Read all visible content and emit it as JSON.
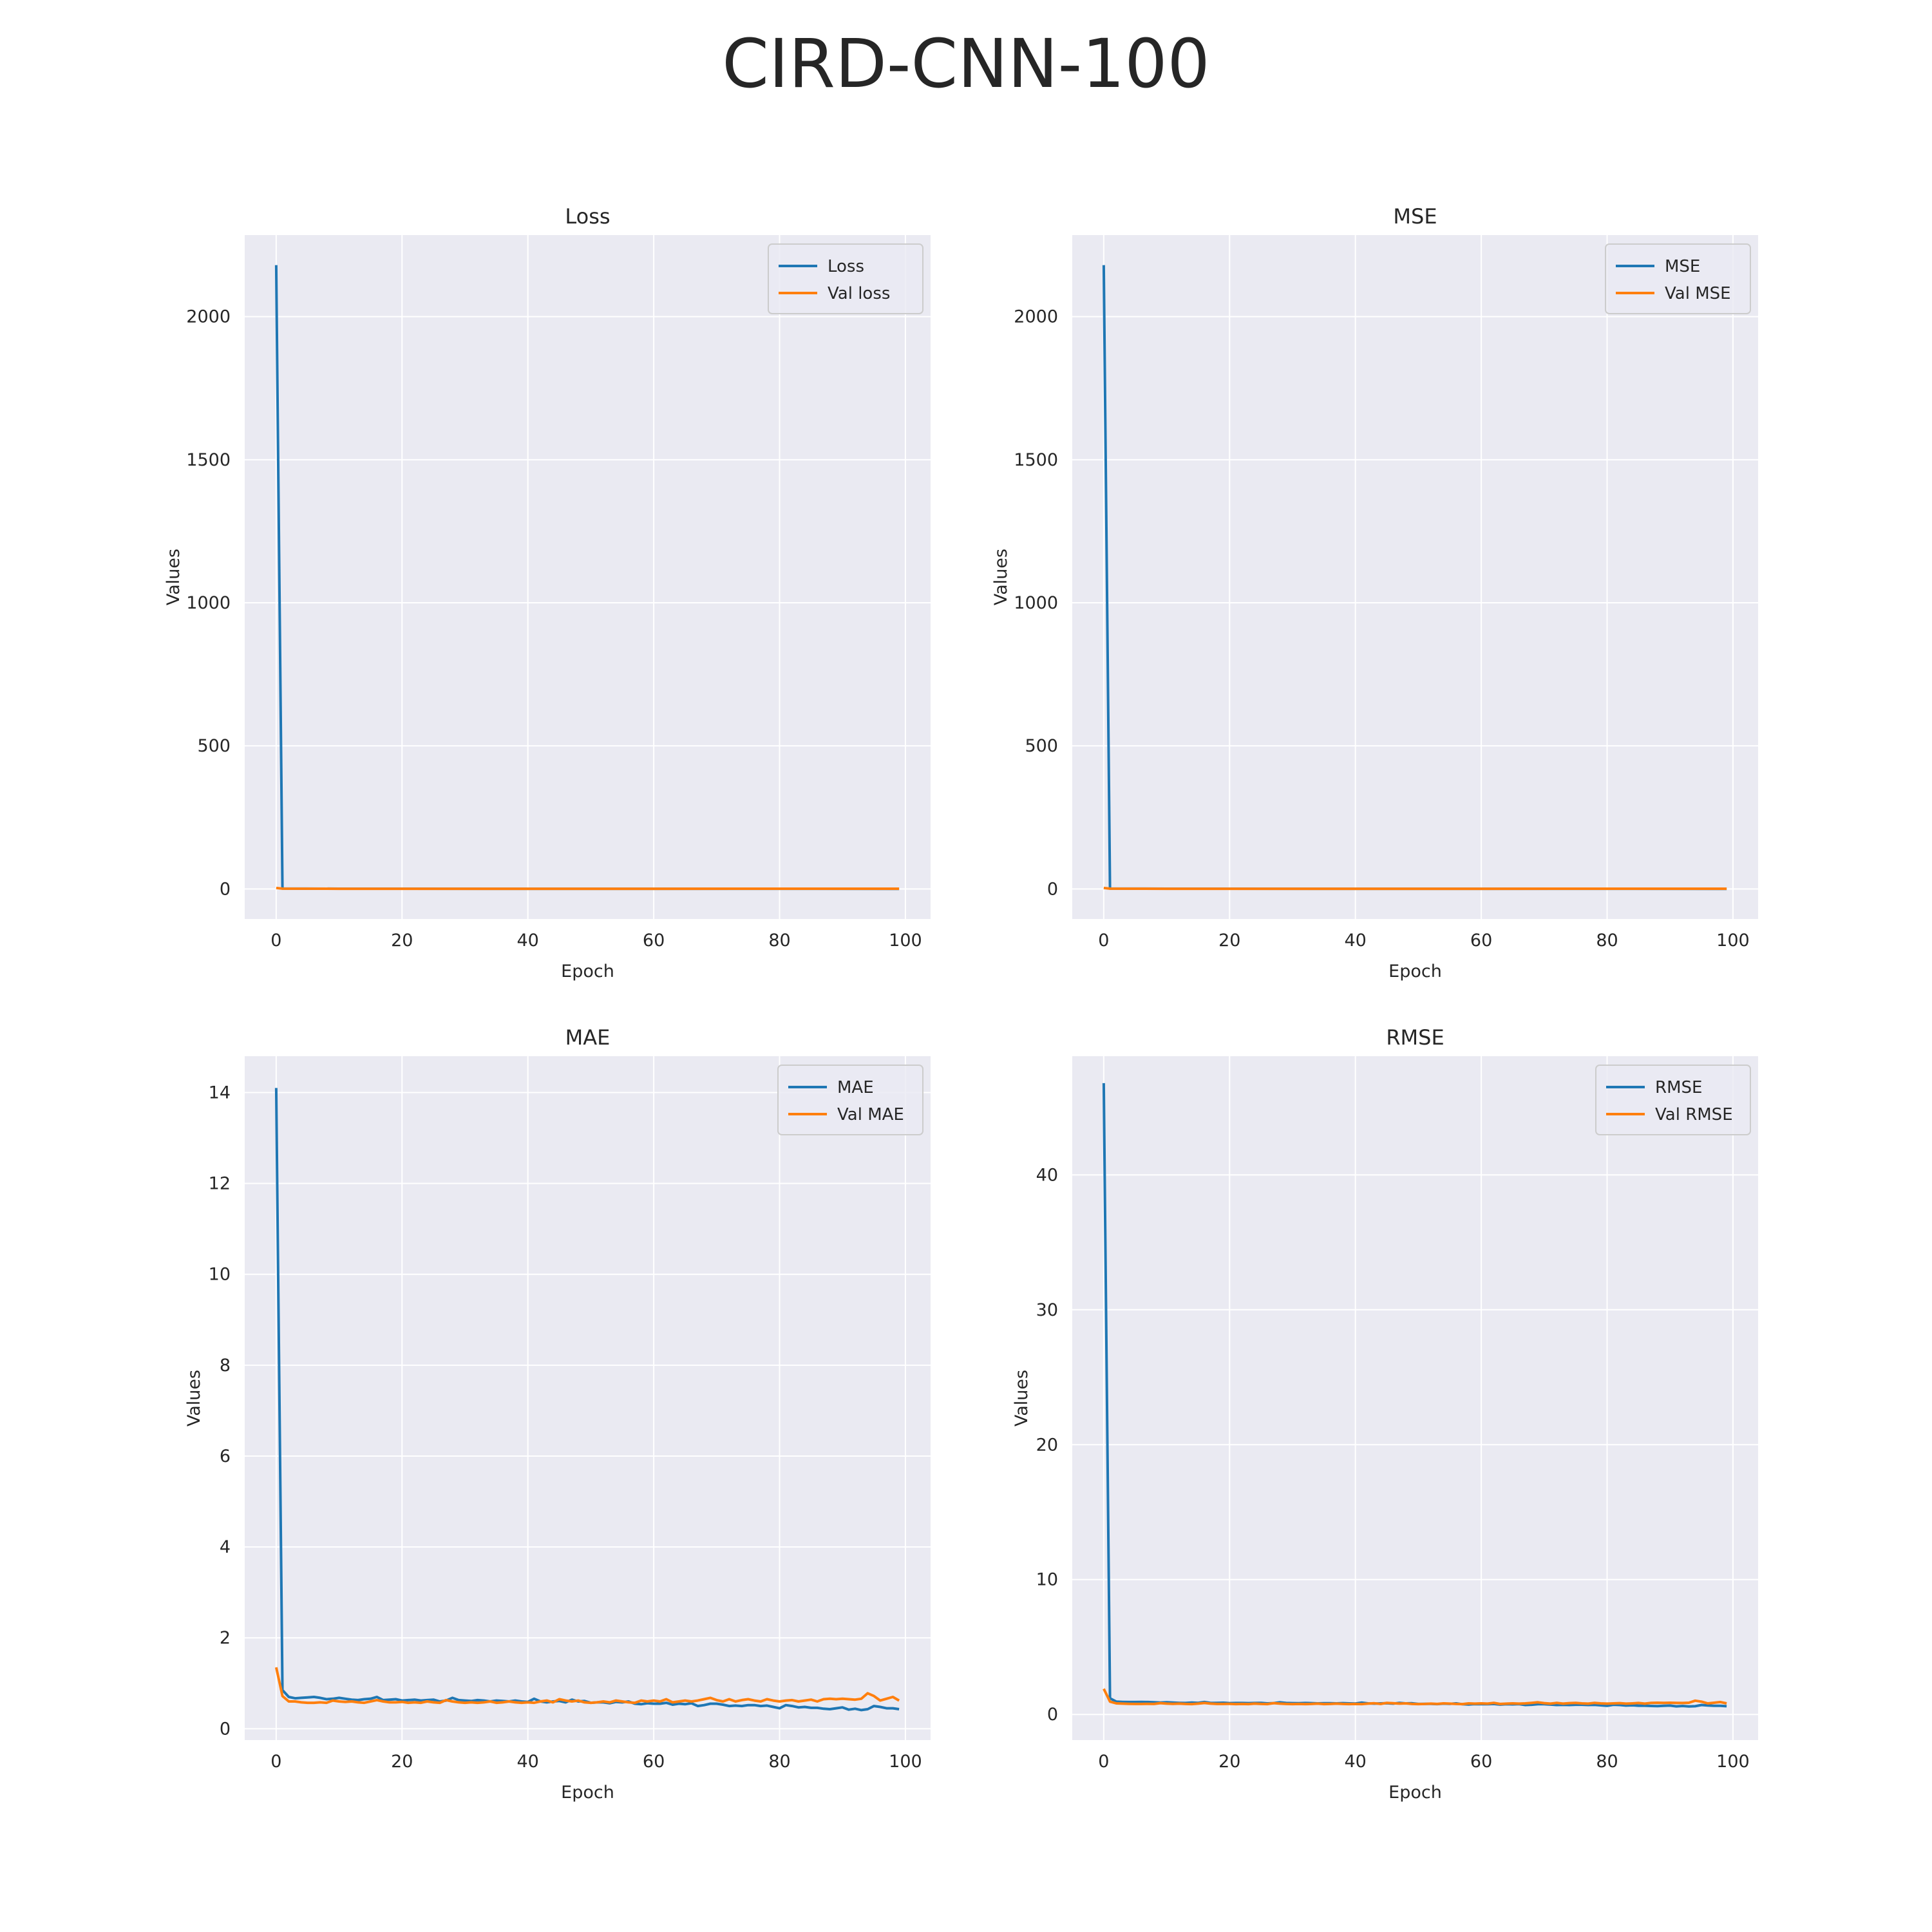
{
  "figure": {
    "suptitle": "CIRD-CNN-100"
  },
  "colors": {
    "background": "#eaeaf2",
    "grid": "#ffffff",
    "train": "#1f77b4",
    "val": "#ff7f0e",
    "text": "#262626"
  },
  "chart_data": [
    {
      "type": "line",
      "title": "Loss",
      "xlabel": "Epoch",
      "ylabel": "Values",
      "xlim": [
        -5,
        104
      ],
      "ylim": [
        -105,
        2285
      ],
      "xticks": [
        0,
        20,
        40,
        60,
        80,
        100
      ],
      "yticks": [
        0,
        500,
        1000,
        1500,
        2000
      ],
      "grid": true,
      "legend": "upper right",
      "series": [
        {
          "name": "Loss",
          "color": "#1f77b4",
          "x": [
            0,
            1,
            10,
            20,
            40,
            60,
            80,
            99
          ],
          "y": [
            2180,
            1.5,
            0.8,
            0.7,
            0.6,
            0.5,
            0.5,
            0.4
          ]
        },
        {
          "name": "Val loss",
          "color": "#ff7f0e",
          "x": [
            0,
            1,
            10,
            20,
            40,
            60,
            80,
            99
          ],
          "y": [
            3.5,
            0.9,
            0.6,
            0.6,
            0.6,
            0.6,
            0.7,
            0.7
          ]
        }
      ]
    },
    {
      "type": "line",
      "title": "MSE",
      "xlabel": "Epoch",
      "ylabel": "Values",
      "xlim": [
        -5,
        104
      ],
      "ylim": [
        -105,
        2285
      ],
      "xticks": [
        0,
        20,
        40,
        60,
        80,
        100
      ],
      "yticks": [
        0,
        500,
        1000,
        1500,
        2000
      ],
      "grid": true,
      "legend": "upper right",
      "series": [
        {
          "name": "MSE",
          "color": "#1f77b4",
          "x": [
            0,
            1,
            10,
            20,
            40,
            60,
            80,
            99
          ],
          "y": [
            2180,
            1.5,
            0.8,
            0.7,
            0.6,
            0.5,
            0.5,
            0.4
          ]
        },
        {
          "name": "Val MSE",
          "color": "#ff7f0e",
          "x": [
            0,
            1,
            10,
            20,
            40,
            60,
            80,
            99
          ],
          "y": [
            3.5,
            0.9,
            0.6,
            0.6,
            0.6,
            0.6,
            0.7,
            0.7
          ]
        }
      ]
    },
    {
      "type": "line",
      "title": "MAE",
      "xlabel": "Epoch",
      "ylabel": "Values",
      "xlim": [
        -5,
        104
      ],
      "ylim": [
        -0.25,
        14.8
      ],
      "xticks": [
        0,
        20,
        40,
        60,
        80,
        100
      ],
      "yticks": [
        0,
        2,
        4,
        6,
        8,
        10,
        12,
        14
      ],
      "grid": true,
      "legend": "upper right",
      "series": [
        {
          "name": "MAE",
          "color": "#1f77b4",
          "x": [
            0,
            1,
            2,
            3,
            4,
            5,
            6,
            7,
            8,
            9,
            10,
            11,
            12,
            13,
            14,
            15,
            16,
            17,
            18,
            19,
            20,
            21,
            22,
            23,
            24,
            25,
            26,
            27,
            28,
            29,
            30,
            31,
            32,
            33,
            34,
            35,
            36,
            37,
            38,
            39,
            40,
            41,
            42,
            43,
            44,
            45,
            46,
            47,
            48,
            49,
            50,
            51,
            52,
            53,
            54,
            55,
            56,
            57,
            58,
            59,
            60,
            61,
            62,
            63,
            64,
            65,
            66,
            67,
            68,
            69,
            70,
            71,
            72,
            73,
            74,
            75,
            76,
            77,
            78,
            79,
            80,
            81,
            82,
            83,
            84,
            85,
            86,
            87,
            88,
            89,
            90,
            91,
            92,
            93,
            94,
            95,
            96,
            97,
            98,
            99
          ],
          "y": [
            14.1,
            0.85,
            0.7,
            0.67,
            0.68,
            0.69,
            0.7,
            0.68,
            0.65,
            0.66,
            0.68,
            0.66,
            0.64,
            0.63,
            0.65,
            0.66,
            0.7,
            0.63,
            0.64,
            0.65,
            0.62,
            0.63,
            0.64,
            0.62,
            0.63,
            0.64,
            0.6,
            0.62,
            0.68,
            0.63,
            0.62,
            0.61,
            0.63,
            0.62,
            0.6,
            0.62,
            0.61,
            0.6,
            0.62,
            0.6,
            0.59,
            0.66,
            0.6,
            0.58,
            0.6,
            0.61,
            0.58,
            0.64,
            0.6,
            0.61,
            0.57,
            0.58,
            0.58,
            0.56,
            0.59,
            0.58,
            0.6,
            0.55,
            0.54,
            0.56,
            0.55,
            0.55,
            0.57,
            0.53,
            0.55,
            0.54,
            0.56,
            0.5,
            0.52,
            0.55,
            0.55,
            0.53,
            0.5,
            0.51,
            0.5,
            0.52,
            0.52,
            0.5,
            0.51,
            0.48,
            0.45,
            0.52,
            0.5,
            0.47,
            0.48,
            0.46,
            0.46,
            0.44,
            0.43,
            0.45,
            0.47,
            0.42,
            0.44,
            0.41,
            0.43,
            0.5,
            0.48,
            0.45,
            0.45,
            0.43
          ]
        },
        {
          "name": "Val MAE",
          "color": "#ff7f0e",
          "x": [
            0,
            1,
            2,
            3,
            4,
            5,
            6,
            7,
            8,
            9,
            10,
            11,
            12,
            13,
            14,
            15,
            16,
            17,
            18,
            19,
            20,
            21,
            22,
            23,
            24,
            25,
            26,
            27,
            28,
            29,
            30,
            31,
            32,
            33,
            34,
            35,
            36,
            37,
            38,
            39,
            40,
            41,
            42,
            43,
            44,
            45,
            46,
            47,
            48,
            49,
            50,
            51,
            52,
            53,
            54,
            55,
            56,
            57,
            58,
            59,
            60,
            61,
            62,
            63,
            64,
            65,
            66,
            67,
            68,
            69,
            70,
            71,
            72,
            73,
            74,
            75,
            76,
            77,
            78,
            79,
            80,
            81,
            82,
            83,
            84,
            85,
            86,
            87,
            88,
            89,
            90,
            91,
            92,
            93,
            94,
            95,
            96,
            97,
            98,
            99
          ],
          "y": [
            1.35,
            0.72,
            0.6,
            0.6,
            0.58,
            0.57,
            0.57,
            0.58,
            0.57,
            0.62,
            0.6,
            0.59,
            0.6,
            0.58,
            0.57,
            0.6,
            0.63,
            0.6,
            0.58,
            0.58,
            0.59,
            0.57,
            0.58,
            0.57,
            0.6,
            0.58,
            0.57,
            0.63,
            0.6,
            0.58,
            0.57,
            0.58,
            0.57,
            0.58,
            0.6,
            0.57,
            0.58,
            0.6,
            0.58,
            0.57,
            0.58,
            0.57,
            0.6,
            0.62,
            0.58,
            0.65,
            0.62,
            0.6,
            0.62,
            0.58,
            0.57,
            0.58,
            0.6,
            0.58,
            0.62,
            0.6,
            0.58,
            0.57,
            0.62,
            0.6,
            0.62,
            0.6,
            0.65,
            0.58,
            0.6,
            0.62,
            0.6,
            0.62,
            0.65,
            0.68,
            0.63,
            0.6,
            0.65,
            0.6,
            0.63,
            0.65,
            0.62,
            0.6,
            0.65,
            0.62,
            0.6,
            0.62,
            0.63,
            0.6,
            0.62,
            0.64,
            0.6,
            0.65,
            0.66,
            0.65,
            0.66,
            0.65,
            0.64,
            0.66,
            0.78,
            0.72,
            0.62,
            0.66,
            0.7,
            0.62
          ]
        }
      ]
    },
    {
      "type": "line",
      "title": "RMSE",
      "xlabel": "Epoch",
      "ylabel": "Values",
      "xlim": [
        -5,
        104
      ],
      "ylim": [
        -1.9,
        48.8
      ],
      "xticks": [
        0,
        20,
        40,
        60,
        80,
        100
      ],
      "yticks": [
        0,
        10,
        20,
        30,
        40
      ],
      "grid": true,
      "legend": "upper right",
      "series": [
        {
          "name": "RMSE",
          "color": "#1f77b4",
          "x": [
            0,
            1,
            2,
            3,
            4,
            5,
            6,
            7,
            8,
            9,
            10,
            11,
            12,
            13,
            14,
            15,
            16,
            17,
            18,
            19,
            20,
            21,
            22,
            23,
            24,
            25,
            26,
            27,
            28,
            29,
            30,
            31,
            32,
            33,
            34,
            35,
            36,
            37,
            38,
            39,
            40,
            41,
            42,
            43,
            44,
            45,
            46,
            47,
            48,
            49,
            50,
            51,
            52,
            53,
            54,
            55,
            56,
            57,
            58,
            59,
            60,
            61,
            62,
            63,
            64,
            65,
            66,
            67,
            68,
            69,
            70,
            71,
            72,
            73,
            74,
            75,
            76,
            77,
            78,
            79,
            80,
            81,
            82,
            83,
            84,
            85,
            86,
            87,
            88,
            89,
            90,
            91,
            92,
            93,
            94,
            95,
            96,
            97,
            98,
            99
          ],
          "y": [
            46.8,
            1.2,
            0.95,
            0.93,
            0.92,
            0.92,
            0.93,
            0.92,
            0.9,
            0.88,
            0.9,
            0.88,
            0.86,
            0.85,
            0.88,
            0.86,
            0.92,
            0.85,
            0.86,
            0.87,
            0.84,
            0.85,
            0.85,
            0.84,
            0.85,
            0.86,
            0.82,
            0.84,
            0.9,
            0.85,
            0.84,
            0.83,
            0.85,
            0.84,
            0.82,
            0.83,
            0.83,
            0.82,
            0.84,
            0.82,
            0.81,
            0.88,
            0.82,
            0.8,
            0.82,
            0.83,
            0.8,
            0.86,
            0.82,
            0.83,
            0.78,
            0.79,
            0.79,
            0.77,
            0.8,
            0.79,
            0.82,
            0.76,
            0.74,
            0.77,
            0.76,
            0.76,
            0.78,
            0.73,
            0.76,
            0.75,
            0.77,
            0.7,
            0.72,
            0.76,
            0.76,
            0.73,
            0.7,
            0.71,
            0.7,
            0.72,
            0.72,
            0.7,
            0.71,
            0.68,
            0.64,
            0.72,
            0.7,
            0.66,
            0.68,
            0.65,
            0.65,
            0.63,
            0.62,
            0.64,
            0.66,
            0.6,
            0.63,
            0.59,
            0.61,
            0.7,
            0.67,
            0.64,
            0.64,
            0.61
          ]
        },
        {
          "name": "Val RMSE",
          "color": "#ff7f0e",
          "x": [
            0,
            1,
            2,
            3,
            4,
            5,
            6,
            7,
            8,
            9,
            10,
            11,
            12,
            13,
            14,
            15,
            16,
            17,
            18,
            19,
            20,
            21,
            22,
            23,
            24,
            25,
            26,
            27,
            28,
            29,
            30,
            31,
            32,
            33,
            34,
            35,
            36,
            37,
            38,
            39,
            40,
            41,
            42,
            43,
            44,
            45,
            46,
            47,
            48,
            49,
            50,
            51,
            52,
            53,
            54,
            55,
            56,
            57,
            58,
            59,
            60,
            61,
            62,
            63,
            64,
            65,
            66,
            67,
            68,
            69,
            70,
            71,
            72,
            73,
            74,
            75,
            76,
            77,
            78,
            79,
            80,
            81,
            82,
            83,
            84,
            85,
            86,
            87,
            88,
            89,
            90,
            91,
            92,
            93,
            94,
            95,
            96,
            97,
            98,
            99
          ],
          "y": [
            1.9,
            0.95,
            0.82,
            0.8,
            0.79,
            0.78,
            0.78,
            0.79,
            0.78,
            0.84,
            0.8,
            0.79,
            0.8,
            0.78,
            0.77,
            0.8,
            0.85,
            0.8,
            0.78,
            0.78,
            0.79,
            0.77,
            0.78,
            0.77,
            0.8,
            0.78,
            0.77,
            0.84,
            0.8,
            0.78,
            0.77,
            0.78,
            0.77,
            0.78,
            0.8,
            0.77,
            0.78,
            0.8,
            0.78,
            0.77,
            0.78,
            0.77,
            0.8,
            0.83,
            0.78,
            0.86,
            0.83,
            0.8,
            0.82,
            0.78,
            0.77,
            0.78,
            0.8,
            0.78,
            0.82,
            0.8,
            0.78,
            0.77,
            0.82,
            0.8,
            0.82,
            0.8,
            0.86,
            0.78,
            0.8,
            0.82,
            0.8,
            0.82,
            0.86,
            0.9,
            0.84,
            0.8,
            0.86,
            0.8,
            0.84,
            0.86,
            0.82,
            0.8,
            0.86,
            0.82,
            0.8,
            0.82,
            0.84,
            0.8,
            0.82,
            0.85,
            0.8,
            0.86,
            0.87,
            0.86,
            0.87,
            0.86,
            0.85,
            0.87,
            1.02,
            0.95,
            0.82,
            0.87,
            0.92,
            0.82
          ]
        }
      ]
    }
  ]
}
